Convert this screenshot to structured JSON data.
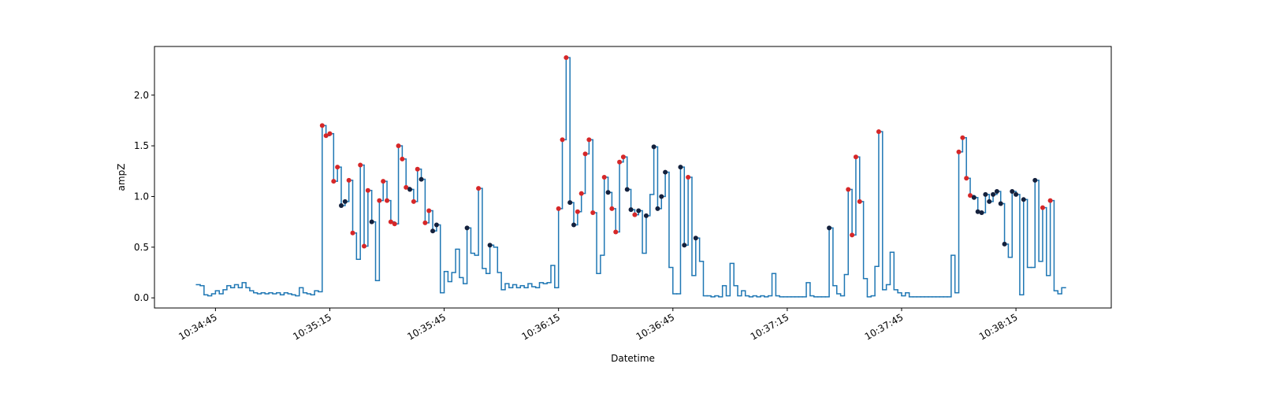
{
  "chart_data": {
    "type": "step-scatter",
    "x_label": "Datetime",
    "y_label": "ampZ",
    "xlim": [
      "10:34:29",
      "10:38:40"
    ],
    "ylim": [
      -0.1,
      2.48
    ],
    "xticks": [
      "10:34:45",
      "10:35:15",
      "10:35:45",
      "10:36:15",
      "10:36:45",
      "10:37:15",
      "10:37:45",
      "10:38:15"
    ],
    "yticks": [
      {
        "value": 0,
        "label": "0.0"
      },
      0.5,
      {
        "value": 1,
        "label": "1.0"
      },
      1.5,
      {
        "value": 2,
        "label": "2.0"
      }
    ],
    "series": [
      {
        "style": "step",
        "color": "#1f77b4",
        "x": [
          "10:34:40",
          "10:34:41",
          "10:34:42",
          "10:34:43",
          "10:34:44",
          "10:34:45",
          "10:34:46",
          "10:34:47",
          "10:34:48",
          "10:34:49",
          "10:34:50",
          "10:34:51",
          "10:34:52",
          "10:34:53",
          "10:34:54",
          "10:34:55",
          "10:34:56",
          "10:34:57",
          "10:34:58",
          "10:34:59",
          "10:35:00",
          "10:35:01",
          "10:35:02",
          "10:35:03",
          "10:35:04",
          "10:35:05",
          "10:35:06",
          "10:35:07",
          "10:35:08",
          "10:35:09",
          "10:35:10",
          "10:35:11",
          "10:35:12",
          "10:35:13",
          "10:35:14",
          "10:35:15",
          "10:35:16",
          "10:35:17",
          "10:35:18",
          "10:35:19",
          "10:35:20",
          "10:35:21",
          "10:35:22",
          "10:35:23",
          "10:35:24",
          "10:35:25",
          "10:35:26",
          "10:35:27",
          "10:35:28",
          "10:35:29",
          "10:35:30",
          "10:35:31",
          "10:35:32",
          "10:35:33",
          "10:35:34",
          "10:35:35",
          "10:35:36",
          "10:35:37",
          "10:35:38",
          "10:35:39",
          "10:35:40",
          "10:35:41",
          "10:35:42",
          "10:35:43",
          "10:35:44",
          "10:35:45",
          "10:35:46",
          "10:35:47",
          "10:35:48",
          "10:35:49",
          "10:35:50",
          "10:35:51",
          "10:35:52",
          "10:35:53",
          "10:35:54",
          "10:35:55",
          "10:35:56",
          "10:35:57",
          "10:35:58",
          "10:35:59",
          "10:36:00",
          "10:36:01",
          "10:36:02",
          "10:36:03",
          "10:36:04",
          "10:36:05",
          "10:36:06",
          "10:36:07",
          "10:36:08",
          "10:36:09",
          "10:36:10",
          "10:36:11",
          "10:36:12",
          "10:36:13",
          "10:36:14",
          "10:36:15",
          "10:36:16",
          "10:36:17",
          "10:36:18",
          "10:36:19",
          "10:36:20",
          "10:36:21",
          "10:36:22",
          "10:36:23",
          "10:36:24",
          "10:36:25",
          "10:36:26",
          "10:36:27",
          "10:36:28",
          "10:36:29",
          "10:36:30",
          "10:36:31",
          "10:36:32",
          "10:36:33",
          "10:36:34",
          "10:36:35",
          "10:36:36",
          "10:36:37",
          "10:36:38",
          "10:36:39",
          "10:36:40",
          "10:36:41",
          "10:36:42",
          "10:36:43",
          "10:36:44",
          "10:36:45",
          "10:36:46",
          "10:36:47",
          "10:36:48",
          "10:36:49",
          "10:36:50",
          "10:36:51",
          "10:36:52",
          "10:36:53",
          "10:36:54",
          "10:36:55",
          "10:36:56",
          "10:36:57",
          "10:36:58",
          "10:36:59",
          "10:37:00",
          "10:37:01",
          "10:37:02",
          "10:37:03",
          "10:37:04",
          "10:37:05",
          "10:37:06",
          "10:37:07",
          "10:37:08",
          "10:37:09",
          "10:37:10",
          "10:37:11",
          "10:37:12",
          "10:37:13",
          "10:37:14",
          "10:37:15",
          "10:37:16",
          "10:37:17",
          "10:37:18",
          "10:37:19",
          "10:37:20",
          "10:37:21",
          "10:37:22",
          "10:37:23",
          "10:37:24",
          "10:37:25",
          "10:37:26",
          "10:37:27",
          "10:37:28",
          "10:37:29",
          "10:37:30",
          "10:37:31",
          "10:37:32",
          "10:37:33",
          "10:37:34",
          "10:37:35",
          "10:37:36",
          "10:37:37",
          "10:37:38",
          "10:37:39",
          "10:37:40",
          "10:37:41",
          "10:37:42",
          "10:37:43",
          "10:37:44",
          "10:37:45",
          "10:37:46",
          "10:37:47",
          "10:37:48",
          "10:37:49",
          "10:37:50",
          "10:37:51",
          "10:37:52",
          "10:37:53",
          "10:37:54",
          "10:37:55",
          "10:37:56",
          "10:37:57",
          "10:37:58",
          "10:37:59",
          "10:38:00",
          "10:38:01",
          "10:38:02",
          "10:38:03",
          "10:38:04",
          "10:38:05",
          "10:38:06",
          "10:38:07",
          "10:38:08",
          "10:38:09",
          "10:38:10",
          "10:38:11",
          "10:38:12",
          "10:38:13",
          "10:38:14",
          "10:38:15",
          "10:38:16",
          "10:38:17",
          "10:38:18",
          "10:38:19",
          "10:38:20",
          "10:38:21",
          "10:38:22",
          "10:38:23",
          "10:38:24",
          "10:38:25",
          "10:38:26",
          "10:38:27"
        ],
        "values": [
          0.13,
          0.12,
          0.03,
          0.02,
          0.04,
          0.07,
          0.04,
          0.08,
          0.12,
          0.1,
          0.13,
          0.1,
          0.15,
          0.1,
          0.07,
          0.05,
          0.04,
          0.05,
          0.04,
          0.05,
          0.04,
          0.05,
          0.03,
          0.05,
          0.04,
          0.03,
          0.02,
          0.1,
          0.05,
          0.04,
          0.03,
          0.07,
          0.06,
          1.7,
          1.6,
          1.62,
          1.15,
          1.29,
          0.91,
          0.95,
          1.16,
          0.64,
          0.38,
          1.31,
          0.51,
          1.06,
          0.75,
          0.17,
          0.96,
          1.15,
          0.96,
          0.75,
          0.73,
          1.5,
          1.37,
          1.09,
          1.07,
          0.95,
          1.27,
          1.17,
          0.74,
          0.86,
          0.66,
          0.72,
          0.05,
          0.26,
          0.16,
          0.25,
          0.48,
          0.2,
          0.14,
          0.69,
          0.44,
          0.42,
          1.08,
          0.29,
          0.24,
          0.52,
          0.5,
          0.25,
          0.08,
          0.14,
          0.1,
          0.13,
          0.1,
          0.12,
          0.1,
          0.14,
          0.11,
          0.1,
          0.15,
          0.14,
          0.15,
          0.32,
          0.1,
          0.88,
          1.56,
          2.37,
          0.94,
          0.72,
          0.85,
          1.03,
          1.42,
          1.56,
          0.84,
          0.24,
          0.42,
          1.19,
          1.04,
          0.88,
          0.65,
          1.34,
          1.39,
          1.07,
          0.87,
          0.82,
          0.86,
          0.44,
          0.81,
          1.02,
          1.49,
          0.88,
          1.0,
          1.24,
          0.3,
          0.04,
          0.04,
          1.29,
          0.52,
          1.19,
          0.22,
          0.59,
          0.36,
          0.02,
          0.02,
          0.01,
          0.02,
          0.01,
          0.12,
          0.02,
          0.34,
          0.12,
          0.02,
          0.07,
          0.02,
          0.01,
          0.02,
          0.01,
          0.02,
          0.01,
          0.02,
          0.24,
          0.02,
          0.01,
          0.01,
          0.01,
          0.01,
          0.01,
          0.01,
          0.01,
          0.15,
          0.02,
          0.01,
          0.01,
          0.01,
          0.01,
          0.69,
          0.12,
          0.04,
          0.02,
          0.23,
          1.07,
          0.62,
          1.39,
          0.95,
          0.19,
          0.01,
          0.02,
          0.31,
          1.64,
          0.08,
          0.13,
          0.45,
          0.08,
          0.05,
          0.02,
          0.05,
          0.01,
          0.01,
          0.01,
          0.01,
          0.01,
          0.01,
          0.01,
          0.01,
          0.01,
          0.01,
          0.01,
          0.42,
          0.05,
          1.44,
          1.58,
          1.18,
          1.01,
          0.99,
          0.85,
          0.84,
          1.02,
          0.95,
          1.02,
          1.05,
          0.93,
          0.53,
          0.4,
          1.05,
          1.02,
          0.03,
          0.97,
          0.3,
          0.3,
          1.16,
          0.36,
          0.89,
          0.22,
          0.96,
          0.07,
          0.04,
          0.1
        ]
      },
      {
        "style": "scatter",
        "color": "#d62728",
        "x": [
          "10:35:13",
          "10:35:14",
          "10:35:15",
          "10:35:16",
          "10:35:17",
          "10:35:20",
          "10:35:21",
          "10:35:23",
          "10:35:24",
          "10:35:25",
          "10:35:28",
          "10:35:29",
          "10:35:30",
          "10:35:31",
          "10:35:32",
          "10:35:33",
          "10:35:34",
          "10:35:35",
          "10:35:37",
          "10:35:38",
          "10:35:40",
          "10:35:41",
          "10:35:54",
          "10:36:15",
          "10:36:16",
          "10:36:17",
          "10:36:20",
          "10:36:21",
          "10:36:22",
          "10:36:23",
          "10:36:24",
          "10:36:27",
          "10:36:29",
          "10:36:30",
          "10:36:31",
          "10:36:32",
          "10:36:35",
          "10:36:49",
          "10:37:31",
          "10:37:32",
          "10:37:33",
          "10:37:34",
          "10:37:39",
          "10:38:00",
          "10:38:01",
          "10:38:02",
          "10:38:03",
          "10:38:22",
          "10:38:24"
        ],
        "values": [
          1.7,
          1.6,
          1.62,
          1.15,
          1.29,
          1.16,
          0.64,
          1.31,
          0.51,
          1.06,
          0.96,
          1.15,
          0.96,
          0.75,
          0.73,
          1.5,
          1.37,
          1.09,
          0.95,
          1.27,
          0.74,
          0.86,
          1.08,
          0.88,
          1.56,
          2.37,
          0.85,
          1.03,
          1.42,
          1.56,
          0.84,
          1.19,
          0.88,
          0.65,
          1.34,
          1.39,
          0.82,
          1.19,
          1.07,
          0.62,
          1.39,
          0.95,
          1.64,
          1.44,
          1.58,
          1.18,
          1.01,
          0.89,
          0.96
        ]
      },
      {
        "style": "scatter",
        "color": "#14213d",
        "x": [
          "10:35:18",
          "10:35:19",
          "10:35:26",
          "10:35:36",
          "10:35:39",
          "10:35:42",
          "10:35:43",
          "10:35:51",
          "10:35:57",
          "10:36:18",
          "10:36:19",
          "10:36:28",
          "10:36:33",
          "10:36:34",
          "10:36:36",
          "10:36:38",
          "10:36:40",
          "10:36:41",
          "10:36:42",
          "10:36:43",
          "10:36:47",
          "10:36:48",
          "10:36:51",
          "10:37:26",
          "10:38:04",
          "10:38:05",
          "10:38:06",
          "10:38:07",
          "10:38:08",
          "10:38:09",
          "10:38:10",
          "10:38:11",
          "10:38:12",
          "10:38:14",
          "10:38:15",
          "10:38:17",
          "10:38:20"
        ],
        "values": [
          0.91,
          0.95,
          0.75,
          1.07,
          1.17,
          0.66,
          0.72,
          0.69,
          0.52,
          0.94,
          0.72,
          1.04,
          1.07,
          0.87,
          0.86,
          0.81,
          1.49,
          0.88,
          1.0,
          1.24,
          1.29,
          0.52,
          0.59,
          0.69,
          0.99,
          0.85,
          0.84,
          1.02,
          0.95,
          1.02,
          1.05,
          0.93,
          0.53,
          1.05,
          1.02,
          0.97,
          1.16
        ]
      }
    ]
  }
}
